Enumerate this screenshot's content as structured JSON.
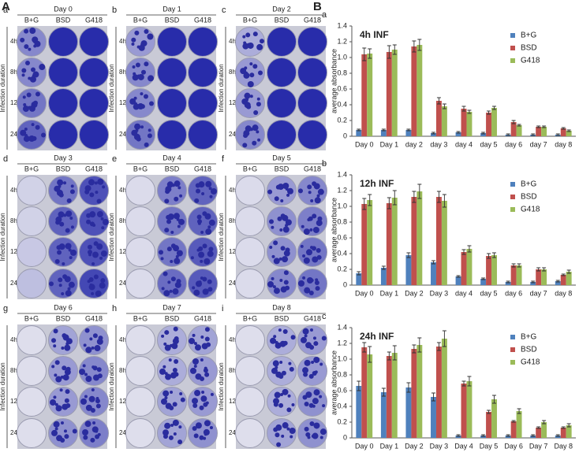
{
  "figure_labels": [
    "A",
    "B"
  ],
  "plates": [
    {
      "letter": "a",
      "title": "Day 0",
      "columns": [
        "B+G",
        "BSD",
        "G418"
      ],
      "rows": [
        "4h",
        "8h",
        "12h",
        "24h"
      ],
      "row_axis": "Infection duration"
    },
    {
      "letter": "b",
      "title": "Day 1",
      "columns": [
        "B+G",
        "BSD",
        "G418"
      ],
      "rows": [
        "4h",
        "8h",
        "12h",
        "24h"
      ],
      "row_axis": "Infection duration"
    },
    {
      "letter": "c",
      "title": "Day 2",
      "columns": [
        "B+G",
        "BSD",
        "G418"
      ],
      "rows": [
        "4h",
        "8h",
        "12h",
        "24h"
      ],
      "row_axis": "Infection duration"
    },
    {
      "letter": "d",
      "title": "Day 3",
      "columns": [
        "B+G",
        "BSD",
        "G418"
      ],
      "rows": [
        "4h",
        "8h",
        "12h",
        "24h"
      ],
      "row_axis": "Infection duration"
    },
    {
      "letter": "e",
      "title": "Day 4",
      "columns": [
        "B+G",
        "BSD",
        "G418"
      ],
      "rows": [
        "4h",
        "8h",
        "12h",
        "24h"
      ],
      "row_axis": "Infection duration"
    },
    {
      "letter": "f",
      "title": "Day 5",
      "columns": [
        "B+G",
        "BSD",
        "G418"
      ],
      "rows": [
        "4h",
        "8h",
        "12h",
        "24h"
      ],
      "row_axis": "Infection duration"
    },
    {
      "letter": "g",
      "title": "Day 6",
      "columns": [
        "B+G",
        "BSD",
        "G418"
      ],
      "rows": [
        "4h",
        "8h",
        "12h",
        "24h"
      ],
      "row_axis": "Infection duration"
    },
    {
      "letter": "h",
      "title": "Day 7",
      "columns": [
        "B+G",
        "BSD",
        "G418"
      ],
      "rows": [
        "4h",
        "8h",
        "12h",
        "24h"
      ],
      "row_axis": "Infection duration"
    },
    {
      "letter": "i",
      "title": "Day 8",
      "columns": [
        "B+G",
        "BSD",
        "G418"
      ],
      "rows": [
        "4h",
        "8h",
        "12h",
        "24h"
      ],
      "row_axis": "Infection duration"
    }
  ],
  "chart_data": [
    {
      "type": "bar",
      "panel": "a",
      "title": "4h INF",
      "y_label": "average absorbance",
      "categories": [
        "Day 0",
        "Day 1",
        "day 2",
        "day 3",
        "day 4",
        "day 5",
        "day 6",
        "day 7",
        "day 8"
      ],
      "ylim": [
        0,
        1.4
      ],
      "yticks": [
        0,
        0.2,
        0.4,
        0.6,
        0.8,
        {
          "value": 1,
          "label": "1.0"
        },
        1.2,
        1.4
      ],
      "series": [
        {
          "name": "B+G",
          "color": "#4f81bd",
          "values": [
            0.08,
            0.08,
            0.08,
            0.04,
            0.05,
            0.04,
            0.02,
            0.02,
            0.02
          ],
          "errors": [
            0.01,
            0.01,
            0.01,
            0.01,
            0.01,
            0.01,
            0.01,
            0.01,
            0.01
          ]
        },
        {
          "name": "BSD",
          "color": "#c0504d",
          "values": [
            1.04,
            1.07,
            1.14,
            0.45,
            0.35,
            0.3,
            0.18,
            0.12,
            0.1
          ],
          "errors": [
            0.08,
            0.08,
            0.07,
            0.04,
            0.03,
            0.02,
            0.02,
            0.01,
            0.01
          ]
        },
        {
          "name": "G418",
          "color": "#9bbb59",
          "values": [
            1.05,
            1.1,
            1.16,
            0.38,
            0.31,
            0.36,
            0.14,
            0.12,
            0.07
          ],
          "errors": [
            0.06,
            0.06,
            0.07,
            0.03,
            0.02,
            0.02,
            0.01,
            0.01,
            0.01
          ]
        }
      ]
    },
    {
      "type": "bar",
      "panel": "b",
      "title": "12h INF",
      "y_label": "average absorbance",
      "categories": [
        "Day 0",
        "Day 1",
        "Day 2",
        "Day 3",
        "day 4",
        "day 5",
        "day 6",
        "day 7",
        "day 8"
      ],
      "ylim": [
        0,
        1.4
      ],
      "yticks": [
        0,
        0.2,
        0.4,
        0.6,
        0.8,
        {
          "value": 1,
          "label": "1.0"
        },
        1.2,
        1.4
      ],
      "series": [
        {
          "name": "B+G",
          "color": "#4f81bd",
          "values": [
            0.15,
            0.22,
            0.38,
            0.29,
            0.11,
            0.08,
            0.04,
            0.04,
            0.05
          ],
          "errors": [
            0.02,
            0.02,
            0.03,
            0.02,
            0.01,
            0.01,
            0.01,
            0.01,
            0.01
          ]
        },
        {
          "name": "BSD",
          "color": "#c0504d",
          "values": [
            1.03,
            1.04,
            1.12,
            1.12,
            0.42,
            0.37,
            0.25,
            0.2,
            0.13
          ],
          "errors": [
            0.07,
            0.07,
            0.07,
            0.07,
            0.03,
            0.03,
            0.02,
            0.02,
            0.01
          ]
        },
        {
          "name": "G418",
          "color": "#9bbb59",
          "values": [
            1.08,
            1.11,
            1.19,
            1.07,
            0.46,
            0.38,
            0.25,
            0.2,
            0.17
          ],
          "errors": [
            0.07,
            0.09,
            0.09,
            0.08,
            0.04,
            0.03,
            0.02,
            0.02,
            0.02
          ]
        }
      ]
    },
    {
      "type": "bar",
      "panel": "c",
      "title": "24h INF",
      "y_label": "average absorbance",
      "categories": [
        "Day 0",
        "Day 1",
        "Day 2",
        "Day 3",
        "Day 4",
        "Day 5",
        "Day 6",
        "Day 7",
        "Day 8"
      ],
      "ylim": [
        0,
        1.4
      ],
      "yticks": [
        0,
        0.2,
        0.4,
        0.6,
        0.8,
        {
          "value": 1,
          "label": "1.0"
        },
        1.2,
        1.4
      ],
      "series": [
        {
          "name": "B+G",
          "color": "#4f81bd",
          "values": [
            0.66,
            0.58,
            0.64,
            0.52,
            0.03,
            0.03,
            0.03,
            0.03,
            0.03
          ],
          "errors": [
            0.06,
            0.05,
            0.06,
            0.05,
            0.01,
            0.01,
            0.01,
            0.01,
            0.01
          ]
        },
        {
          "name": "BSD",
          "color": "#c0504d",
          "values": [
            1.15,
            1.04,
            1.13,
            1.16,
            0.69,
            0.33,
            0.21,
            0.13,
            0.13
          ],
          "errors": [
            0.06,
            0.05,
            0.05,
            0.05,
            0.03,
            0.02,
            0.01,
            0.01,
            0.01
          ]
        },
        {
          "name": "G418",
          "color": "#9bbb59",
          "values": [
            1.06,
            1.08,
            1.18,
            1.26,
            0.72,
            0.49,
            0.34,
            0.2,
            0.16
          ],
          "errors": [
            0.1,
            0.09,
            0.09,
            0.1,
            0.06,
            0.05,
            0.03,
            0.02,
            0.02
          ]
        }
      ]
    }
  ]
}
